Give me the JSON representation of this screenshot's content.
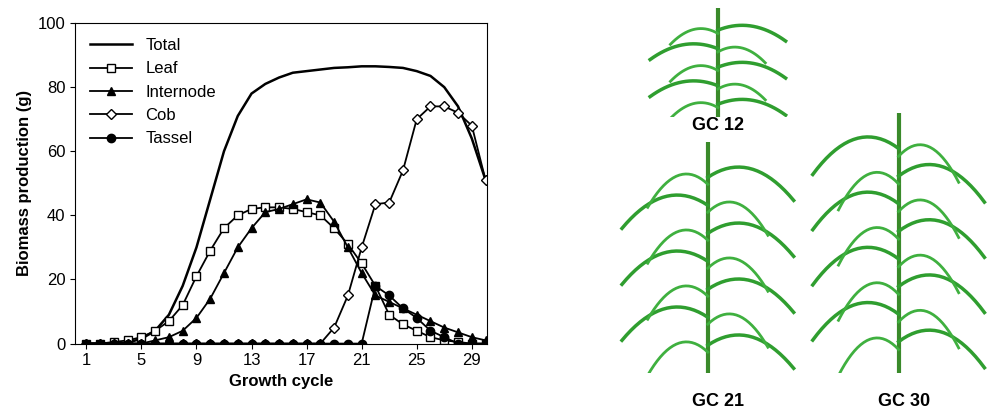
{
  "chart_data": {
    "type": "line",
    "x_label": "Growth cycle",
    "y_label": "Biomass production (g)",
    "x": [
      1,
      2,
      3,
      4,
      5,
      6,
      7,
      8,
      9,
      10,
      11,
      12,
      13,
      14,
      15,
      16,
      17,
      18,
      19,
      20,
      21,
      22,
      23,
      24,
      25,
      26,
      27,
      28,
      29,
      30
    ],
    "xlim": [
      0.2,
      30.1
    ],
    "xticks": [
      1,
      5,
      9,
      13,
      17,
      21,
      25,
      29
    ],
    "ylim": [
      0,
      100
    ],
    "yticks": [
      0,
      20,
      40,
      60,
      80,
      100
    ],
    "grid": false,
    "legend": "upper left",
    "series": [
      {
        "name": "Total",
        "color": "#000000",
        "line_style": "solid",
        "values": [
          0,
          0,
          0,
          0.3,
          1.5,
          4,
          9,
          18,
          30,
          45,
          60,
          71,
          78,
          81,
          83,
          84.5,
          85,
          85.5,
          86,
          86.2,
          86.5,
          86.5,
          86.3,
          86,
          85,
          83.5,
          80,
          74,
          64,
          51
        ]
      },
      {
        "name": "Leaf",
        "color": "#000000",
        "marker": "square_open",
        "line_style": "solid",
        "values": [
          0,
          0,
          0.5,
          1,
          2,
          4,
          7,
          12,
          21,
          29,
          36,
          40,
          42,
          42.5,
          42.5,
          42,
          41,
          40,
          36,
          31,
          25,
          18,
          9,
          6,
          4,
          2,
          1,
          0.5,
          0,
          0
        ]
      },
      {
        "name": "Internode",
        "color": "#000000",
        "marker": "triangle",
        "line_style": "solid",
        "values": [
          0,
          0,
          0,
          0,
          0,
          1,
          2,
          4,
          8,
          14,
          22,
          30,
          36,
          41,
          42,
          43.5,
          45,
          44,
          38,
          30,
          22,
          15,
          13,
          11,
          9,
          7,
          5,
          3.5,
          2,
          1
        ]
      },
      {
        "name": "Cob",
        "color": "#000000",
        "marker": "diamond_open",
        "line_style": "solid",
        "values": [
          0,
          0,
          0,
          0,
          0,
          0,
          0,
          0,
          0,
          0,
          0,
          0,
          0,
          0,
          0,
          0,
          0,
          0,
          5,
          15,
          30,
          43.5,
          44,
          54,
          70,
          74,
          74,
          72,
          68,
          51
        ]
      },
      {
        "name": "Tassel",
        "color": "#000000",
        "marker": "circle",
        "line_style": "solid",
        "values": [
          0,
          0,
          0,
          0,
          0,
          0,
          0,
          0,
          0,
          0,
          0,
          0,
          0,
          0,
          0,
          0,
          0,
          0,
          0,
          0,
          0,
          18,
          15,
          11,
          8,
          4,
          2,
          0,
          0,
          0
        ]
      }
    ],
    "annotations": [
      "GC 12",
      "GC 21",
      "GC 30"
    ]
  }
}
